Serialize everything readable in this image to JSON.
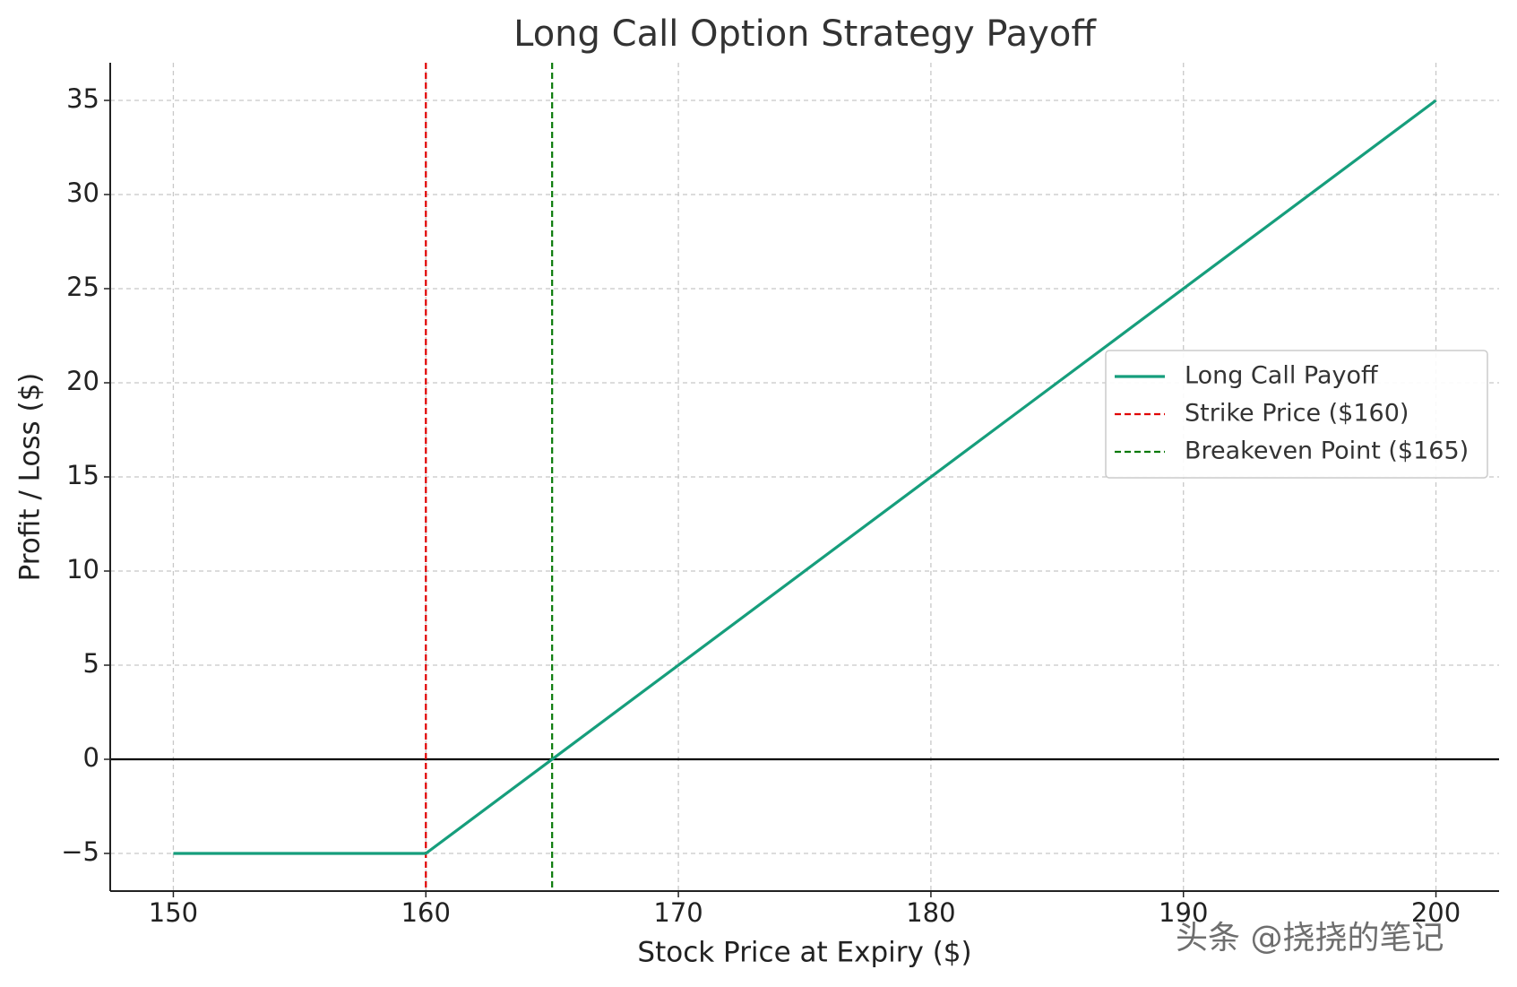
{
  "chart_data": {
    "type": "line",
    "title": "Long Call Option Strategy Payoff",
    "x_label": "Stock Price at Expiry ($)",
    "y_label": "Profit / Loss ($)",
    "series": [
      {
        "name": "Long Call Payoff",
        "color": "#169e7c",
        "x": [
          150,
          160,
          200
        ],
        "values": [
          -5,
          -5,
          35
        ]
      }
    ],
    "vlines": [
      {
        "name": "Strike Price ($160)",
        "x": 160,
        "color": "#e00000"
      },
      {
        "name": "Breakeven Point ($165)",
        "x": 165,
        "color": "#0a7a0a"
      }
    ],
    "hline": {
      "y": 0,
      "color": "#000000"
    },
    "xlim": [
      147.5,
      202.5
    ],
    "ylim": [
      -7,
      37
    ],
    "xticks": [
      150,
      160,
      170,
      180,
      190,
      200
    ],
    "yticks": [
      {
        "value": -5,
        "label": "−5"
      },
      0,
      5,
      10,
      15,
      20,
      25,
      30,
      35
    ],
    "grid": true,
    "legend": "center right",
    "watermark": "头条 @挠挠的笔记"
  }
}
